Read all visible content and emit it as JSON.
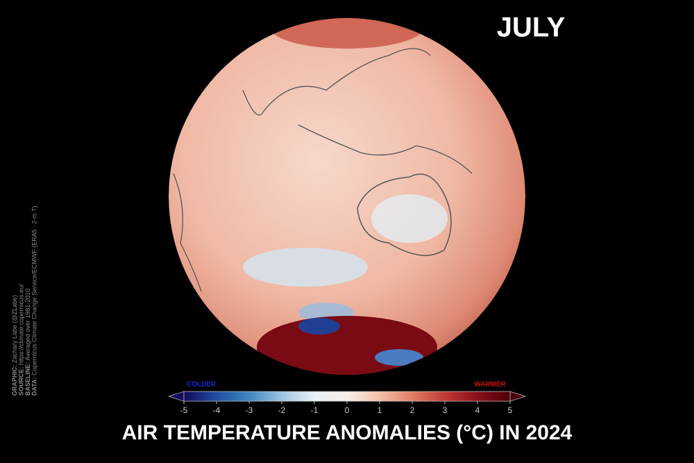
{
  "month": "JULY",
  "title": "AIR TEMPERATURE ANOMALIES (°C) IN 2024",
  "credits": [
    {
      "label": "GRAPHIC:",
      "text": "Zachary Labe (@ZLabe)"
    },
    {
      "label": "SOURCE:",
      "text": "https://climate.copernicus.eu/"
    },
    {
      "label": "BASELINE:",
      "text": "Averaged over 1981-2010"
    },
    {
      "label": "DATA:",
      "text": "Copernicus Climate Change Service/ECMWF (ERA5 : 2-m T)"
    }
  ],
  "colorbar": {
    "lim": [
      -5,
      5
    ],
    "ticks": [
      -5,
      -4,
      -3,
      -2,
      -1,
      0,
      1,
      2,
      3,
      4,
      5
    ],
    "colder_label": "COLDER",
    "warmer_label": "WARMER",
    "colors": [
      "#120a5c",
      "#1f4fa0",
      "#3f86c2",
      "#9ec5e0",
      "#eaf1f6",
      "#f8efe9",
      "#f3c0a8",
      "#e07d66",
      "#c03a34",
      "#8c0f1c",
      "#4a0008"
    ]
  }
}
